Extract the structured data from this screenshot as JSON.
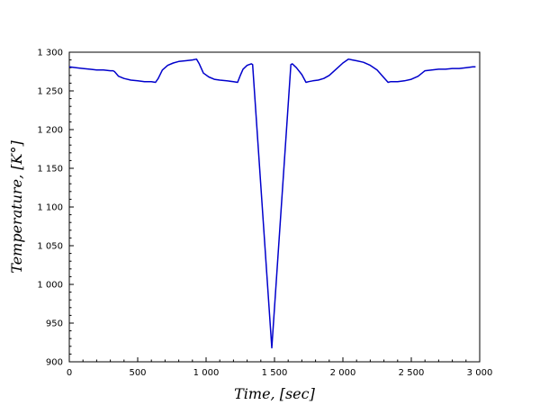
{
  "chart_data": {
    "type": "line",
    "title": "",
    "xlabel": "Time, [sec]",
    "ylabel": "Temperature, [K°]",
    "xlim": [
      0,
      3000
    ],
    "ylim": [
      900,
      1300
    ],
    "x_ticks": [
      0,
      500,
      1000,
      1500,
      2000,
      2500,
      3000
    ],
    "x_tick_labels": [
      "0",
      "500",
      "1 000",
      "1 500",
      "2 000",
      "2 500",
      "3 000"
    ],
    "y_ticks": [
      900,
      950,
      1000,
      1050,
      1100,
      1150,
      1200,
      1250,
      1300
    ],
    "y_tick_labels": [
      "900",
      "950",
      "1 000",
      "1 050",
      "1 100",
      "1 150",
      "1 200",
      "1 250",
      "1 300"
    ],
    "grid": false,
    "series": [
      {
        "color": "#0000cc",
        "x": [
          0,
          50,
          100,
          150,
          200,
          250,
          300,
          320,
          330,
          360,
          400,
          450,
          500,
          550,
          600,
          630,
          650,
          680,
          720,
          760,
          800,
          850,
          900,
          930,
          950,
          980,
          1020,
          1060,
          1100,
          1150,
          1200,
          1230,
          1250,
          1270,
          1300,
          1330,
          1340,
          1480,
          1620,
          1630,
          1660,
          1700,
          1730,
          1750,
          1780,
          1820,
          1860,
          1900,
          1950,
          2000,
          2040,
          2070,
          2100,
          2150,
          2200,
          2250,
          2300,
          2330,
          2350,
          2400,
          2450,
          2500,
          2550,
          2600,
          2650,
          2700,
          2750,
          2800,
          2850,
          2900,
          2950,
          2970
        ],
        "y": [
          1281,
          1280,
          1279,
          1278,
          1277,
          1277,
          1276,
          1276,
          1275,
          1269,
          1266,
          1264,
          1263,
          1262,
          1262,
          1261,
          1266,
          1277,
          1283,
          1286,
          1288,
          1289,
          1290,
          1291,
          1285,
          1273,
          1268,
          1265,
          1264,
          1263,
          1262,
          1261,
          1270,
          1278,
          1283,
          1285,
          1284,
          918,
          1284,
          1285,
          1280,
          1271,
          1261,
          1262,
          1263,
          1264,
          1266,
          1270,
          1278,
          1286,
          1291,
          1290,
          1289,
          1287,
          1283,
          1277,
          1267,
          1261,
          1262,
          1262,
          1263,
          1265,
          1269,
          1276,
          1277,
          1278,
          1278,
          1279,
          1279,
          1280,
          1281,
          1281
        ]
      }
    ]
  }
}
